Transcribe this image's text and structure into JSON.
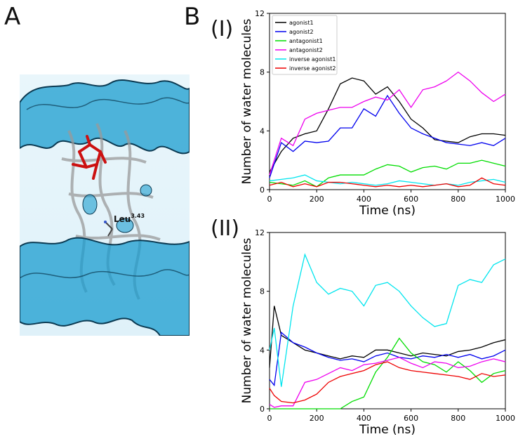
{
  "panels": {
    "a": "A",
    "b": "B",
    "i": "(I)",
    "ii": "(II)"
  },
  "residue_label": {
    "base": "Leu",
    "sup": "3.43"
  },
  "colors": {
    "agonist1": "#000000",
    "agonist2": "#0000ee",
    "antagonist1": "#00dd00",
    "antagonist2": "#ee00ee",
    "inverse_agonist1": "#00e5ee",
    "inverse_agonist2": "#ee0000"
  },
  "chart_data": [
    {
      "id": "I",
      "type": "line",
      "xlabel": "Time (ns)",
      "ylabel": "Number of water molecules",
      "xlim": [
        0,
        1000
      ],
      "ylim": [
        0,
        12
      ],
      "xticks": [
        0,
        200,
        400,
        600,
        800,
        1000
      ],
      "yticks": [
        0,
        4,
        8,
        12
      ],
      "legend_position": "top-left",
      "x": [
        0,
        50,
        100,
        150,
        200,
        250,
        300,
        350,
        400,
        450,
        500,
        550,
        600,
        650,
        700,
        750,
        800,
        850,
        900,
        950,
        1000
      ],
      "series": [
        {
          "name": "agonist1",
          "values": [
            1.2,
            2.6,
            3.5,
            3.8,
            4.0,
            5.5,
            7.2,
            7.6,
            7.4,
            6.5,
            7.0,
            6.0,
            4.8,
            4.2,
            3.4,
            3.3,
            3.2,
            3.6,
            3.8,
            3.8,
            3.7
          ]
        },
        {
          "name": "agonist2",
          "values": [
            0.8,
            3.2,
            2.6,
            3.3,
            3.2,
            3.3,
            4.2,
            4.2,
            5.5,
            5.0,
            6.4,
            5.2,
            4.2,
            3.8,
            3.5,
            3.2,
            3.1,
            3.0,
            3.2,
            3.0,
            3.5
          ]
        },
        {
          "name": "antagonist1",
          "values": [
            0.5,
            0.4,
            0.3,
            0.6,
            0.2,
            0.8,
            1.0,
            1.0,
            1.0,
            1.4,
            1.7,
            1.6,
            1.2,
            1.5,
            1.6,
            1.4,
            1.8,
            1.8,
            2.0,
            1.8,
            1.6
          ]
        },
        {
          "name": "antagonist2",
          "values": [
            1.0,
            3.5,
            3.0,
            4.8,
            5.2,
            5.4,
            5.6,
            5.6,
            6.0,
            6.3,
            6.1,
            6.8,
            5.6,
            6.8,
            7.0,
            7.4,
            8.0,
            7.4,
            6.6,
            6.0,
            6.5
          ]
        },
        {
          "name": "inverse agonist1",
          "values": [
            0.6,
            0.7,
            0.8,
            1.0,
            0.6,
            0.5,
            0.4,
            0.5,
            0.4,
            0.3,
            0.4,
            0.6,
            0.5,
            0.4,
            0.3,
            0.4,
            0.3,
            0.5,
            0.6,
            0.7,
            0.5
          ]
        },
        {
          "name": "inverse agonist2",
          "values": [
            0.3,
            0.5,
            0.2,
            0.4,
            0.2,
            0.5,
            0.5,
            0.4,
            0.3,
            0.2,
            0.3,
            0.2,
            0.3,
            0.2,
            0.3,
            0.4,
            0.2,
            0.3,
            0.8,
            0.4,
            0.3
          ]
        }
      ]
    },
    {
      "id": "II",
      "type": "line",
      "xlabel": "Time (ns)",
      "ylabel": "Number of water molecules",
      "xlim": [
        0,
        1000
      ],
      "ylim": [
        0,
        12
      ],
      "xticks": [
        0,
        200,
        400,
        600,
        800,
        1000
      ],
      "yticks": [
        0,
        4,
        8,
        12
      ],
      "x": [
        0,
        20,
        50,
        100,
        150,
        200,
        250,
        300,
        350,
        400,
        450,
        500,
        550,
        600,
        650,
        700,
        750,
        800,
        850,
        900,
        950,
        1000
      ],
      "series": [
        {
          "name": "agonist1",
          "values": [
            2.8,
            7.0,
            5.0,
            4.5,
            4.0,
            3.8,
            3.6,
            3.4,
            3.6,
            3.5,
            4.0,
            4.0,
            3.8,
            3.6,
            3.8,
            3.7,
            3.6,
            3.9,
            4.0,
            4.2,
            4.5,
            4.7
          ]
        },
        {
          "name": "agonist2",
          "values": [
            2.0,
            1.6,
            5.2,
            4.5,
            4.2,
            3.8,
            3.5,
            3.3,
            3.4,
            3.2,
            3.6,
            3.8,
            3.5,
            3.4,
            3.6,
            3.5,
            3.7,
            3.5,
            3.7,
            3.4,
            3.6,
            4.0
          ]
        },
        {
          "name": "antagonist1",
          "values": [
            0.0,
            0.0,
            0.0,
            0.0,
            0.0,
            0.0,
            0.0,
            0.0,
            0.5,
            0.8,
            2.5,
            3.5,
            4.8,
            3.8,
            3.2,
            3.0,
            2.5,
            3.2,
            2.6,
            1.8,
            2.4,
            2.6
          ]
        },
        {
          "name": "antagonist2",
          "values": [
            0.3,
            0.1,
            0.2,
            0.2,
            1.8,
            2.0,
            2.4,
            2.8,
            2.6,
            3.0,
            3.1,
            3.3,
            3.5,
            3.1,
            2.8,
            3.2,
            3.1,
            2.8,
            2.9,
            3.2,
            3.4,
            3.2
          ]
        },
        {
          "name": "inverse agonist1",
          "values": [
            4.0,
            5.5,
            1.5,
            7.0,
            10.5,
            8.6,
            7.8,
            8.2,
            8.0,
            7.0,
            8.4,
            8.6,
            8.0,
            7.0,
            6.2,
            5.6,
            5.8,
            8.4,
            8.8,
            8.6,
            9.8,
            10.2
          ]
        },
        {
          "name": "inverse agonist2",
          "values": [
            1.4,
            0.9,
            0.5,
            0.4,
            0.6,
            1.0,
            1.8,
            2.2,
            2.4,
            2.6,
            3.0,
            3.2,
            2.8,
            2.6,
            2.5,
            2.4,
            2.3,
            2.2,
            2.0,
            2.4,
            2.2,
            2.3
          ]
        }
      ]
    }
  ]
}
